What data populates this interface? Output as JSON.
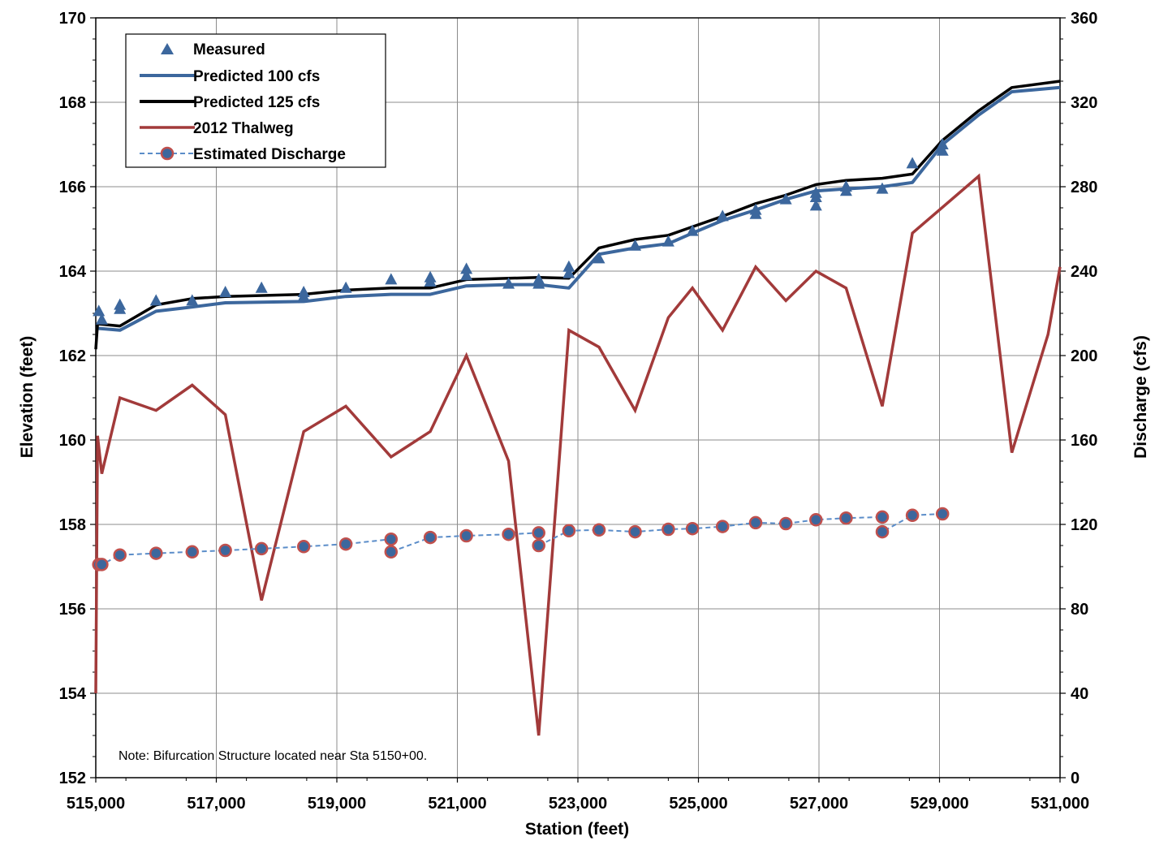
{
  "chart_data": {
    "type": "line",
    "note": "Note:  Bifurcation Structure located near Sta 5150+00.",
    "xlabel": "Station (feet)",
    "ylabel": "Elevation (feet)",
    "y2label": "Discharge (cfs)",
    "xlim": [
      515000,
      531000
    ],
    "ylim": [
      152,
      170
    ],
    "y2lim": [
      0,
      360
    ],
    "x_ticks": [
      "515,000",
      "517,000",
      "519,000",
      "521,000",
      "523,000",
      "525,000",
      "527,000",
      "529,000",
      "531,000"
    ],
    "y_ticks": [
      "170",
      "168",
      "166",
      "164",
      "162",
      "160",
      "158",
      "156",
      "154",
      "152"
    ],
    "y2_ticks": [
      "360",
      "320",
      "280",
      "240",
      "200",
      "160",
      "120",
      "80",
      "40",
      "0"
    ],
    "grid": true,
    "legend_position": "top-left",
    "legend": [
      "Measured",
      "Predicted 100 cfs",
      "Predicted 125 cfs",
      "2012 Thalweg",
      "Estimated Discharge"
    ],
    "colors": {
      "measured": "#3c679d",
      "predicted_100": "#3c679d",
      "predicted_125": "#000000",
      "thalweg": "#a23a3a",
      "discharge_line": "#5b8dc9",
      "discharge_marker_fill": "#3c679d",
      "discharge_marker_edge": "#c0504d"
    },
    "series": [
      {
        "name": "Measured",
        "kind": "marker-triangle",
        "axis": "left",
        "points": [
          [
            515050,
            163.05
          ],
          [
            515100,
            162.85
          ],
          [
            515400,
            163.2
          ],
          [
            515400,
            163.1
          ],
          [
            516000,
            163.3
          ],
          [
            516600,
            163.3
          ],
          [
            517150,
            163.5
          ],
          [
            517750,
            163.6
          ],
          [
            518450,
            163.5
          ],
          [
            518450,
            163.4
          ],
          [
            519150,
            163.6
          ],
          [
            519900,
            163.8
          ],
          [
            520550,
            163.85
          ],
          [
            520550,
            163.75
          ],
          [
            521150,
            164.05
          ],
          [
            521150,
            163.9
          ],
          [
            521850,
            163.7
          ],
          [
            522350,
            163.8
          ],
          [
            522350,
            163.7
          ],
          [
            522850,
            164.1
          ],
          [
            522850,
            163.95
          ],
          [
            523350,
            164.3
          ],
          [
            523950,
            164.6
          ],
          [
            524500,
            164.7
          ],
          [
            524900,
            164.95
          ],
          [
            525400,
            165.3
          ],
          [
            525950,
            165.45
          ],
          [
            525950,
            165.35
          ],
          [
            526450,
            165.7
          ],
          [
            526950,
            165.75
          ],
          [
            526950,
            165.85
          ],
          [
            526950,
            165.55
          ],
          [
            527450,
            166.0
          ],
          [
            527450,
            165.9
          ],
          [
            528050,
            165.95
          ],
          [
            528550,
            166.55
          ],
          [
            529050,
            167.0
          ],
          [
            529050,
            166.85
          ]
        ]
      },
      {
        "name": "Predicted 100 cfs",
        "kind": "line",
        "axis": "left",
        "points": [
          [
            515000,
            162.65
          ],
          [
            515400,
            162.6
          ],
          [
            516000,
            163.05
          ],
          [
            516600,
            163.15
          ],
          [
            517150,
            163.25
          ],
          [
            518450,
            163.28
          ],
          [
            519150,
            163.4
          ],
          [
            519900,
            163.45
          ],
          [
            520550,
            163.45
          ],
          [
            521150,
            163.65
          ],
          [
            521850,
            163.68
          ],
          [
            522350,
            163.68
          ],
          [
            522850,
            163.6
          ],
          [
            523350,
            164.4
          ],
          [
            523950,
            164.55
          ],
          [
            524500,
            164.65
          ],
          [
            524900,
            164.9
          ],
          [
            525400,
            165.2
          ],
          [
            525950,
            165.45
          ],
          [
            526450,
            165.7
          ],
          [
            526950,
            165.9
          ],
          [
            527450,
            165.95
          ],
          [
            528050,
            166.0
          ],
          [
            528550,
            166.1
          ],
          [
            529050,
            167.0
          ],
          [
            529650,
            167.7
          ],
          [
            530200,
            168.25
          ],
          [
            531000,
            168.35
          ]
        ]
      },
      {
        "name": "Predicted 125 cfs",
        "kind": "line",
        "axis": "left",
        "points": [
          [
            515000,
            162.15
          ],
          [
            515030,
            162.75
          ],
          [
            515400,
            162.7
          ],
          [
            516000,
            163.2
          ],
          [
            516600,
            163.35
          ],
          [
            517150,
            163.4
          ],
          [
            518450,
            163.45
          ],
          [
            519150,
            163.55
          ],
          [
            519900,
            163.6
          ],
          [
            520550,
            163.6
          ],
          [
            521150,
            163.8
          ],
          [
            521850,
            163.83
          ],
          [
            522350,
            163.85
          ],
          [
            522850,
            163.83
          ],
          [
            523350,
            164.55
          ],
          [
            523950,
            164.75
          ],
          [
            524500,
            164.85
          ],
          [
            524900,
            165.05
          ],
          [
            525400,
            165.3
          ],
          [
            525950,
            165.6
          ],
          [
            526450,
            165.8
          ],
          [
            526950,
            166.05
          ],
          [
            527450,
            166.15
          ],
          [
            528050,
            166.2
          ],
          [
            528550,
            166.3
          ],
          [
            529050,
            167.1
          ],
          [
            529650,
            167.8
          ],
          [
            530200,
            168.35
          ],
          [
            531000,
            168.5
          ]
        ]
      },
      {
        "name": "2012 Thalweg",
        "kind": "line",
        "axis": "left",
        "points": [
          [
            515000,
            154.0
          ],
          [
            515030,
            160.1
          ],
          [
            515100,
            159.2
          ],
          [
            515400,
            161.0
          ],
          [
            516000,
            160.7
          ],
          [
            516600,
            161.3
          ],
          [
            517150,
            160.6
          ],
          [
            517750,
            156.2
          ],
          [
            518450,
            160.2
          ],
          [
            519150,
            160.8
          ],
          [
            519900,
            159.6
          ],
          [
            520550,
            160.2
          ],
          [
            521150,
            162.0
          ],
          [
            521850,
            159.5
          ],
          [
            522350,
            153.0
          ],
          [
            522850,
            162.6
          ],
          [
            523350,
            162.2
          ],
          [
            523950,
            160.7
          ],
          [
            524500,
            162.9
          ],
          [
            524900,
            163.6
          ],
          [
            525400,
            162.6
          ],
          [
            525950,
            164.1
          ],
          [
            526450,
            163.3
          ],
          [
            526950,
            164.0
          ],
          [
            527450,
            163.6
          ],
          [
            528050,
            160.8
          ],
          [
            528550,
            164.9
          ],
          [
            529650,
            166.25
          ],
          [
            530200,
            159.7
          ],
          [
            530800,
            162.5
          ],
          [
            531000,
            164.1
          ]
        ]
      },
      {
        "name": "Estimated Discharge",
        "kind": "dashed-circle",
        "axis": "right",
        "points": [
          [
            515050,
            101
          ],
          [
            515100,
            101
          ],
          [
            515400,
            105.5
          ],
          [
            516000,
            106.3
          ],
          [
            516600,
            107
          ],
          [
            517150,
            107.7
          ],
          [
            517750,
            108.5
          ],
          [
            518450,
            109.5
          ],
          [
            519150,
            110.7
          ],
          [
            519900,
            113
          ],
          [
            519900,
            107
          ],
          [
            520550,
            113.8
          ],
          [
            521150,
            114.6
          ],
          [
            521850,
            115.3
          ],
          [
            522350,
            116
          ],
          [
            522350,
            110
          ],
          [
            522850,
            117
          ],
          [
            523350,
            117.4
          ],
          [
            523950,
            116.5
          ],
          [
            524500,
            117.7
          ],
          [
            524900,
            118
          ],
          [
            525400,
            119
          ],
          [
            525950,
            120.8
          ],
          [
            526450,
            120.4
          ],
          [
            526950,
            122.2
          ],
          [
            527450,
            123
          ],
          [
            528050,
            123.5
          ],
          [
            528050,
            116.5
          ],
          [
            528550,
            124.3
          ],
          [
            529050,
            125
          ]
        ]
      }
    ]
  }
}
